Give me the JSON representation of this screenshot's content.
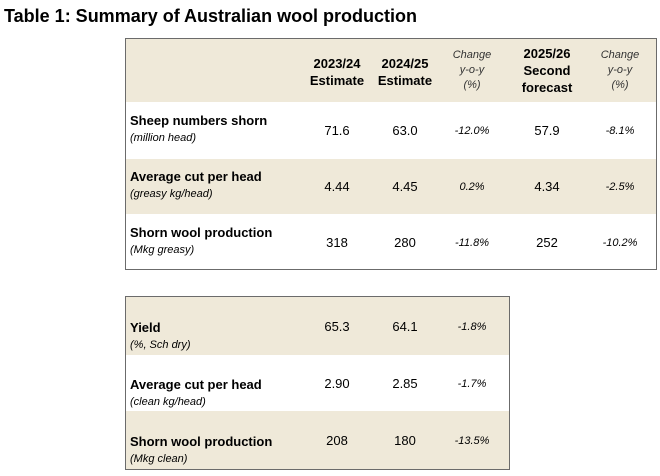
{
  "title": "Table 1: Summary of Australian wool production",
  "table1": {
    "headers": {
      "c1": [
        "2023/24",
        "Estimate"
      ],
      "c2": [
        "2024/25",
        "Estimate"
      ],
      "c3": [
        "Change",
        "y-o-y",
        "(%)"
      ],
      "c4": [
        "2025/26",
        "Second",
        "forecast"
      ],
      "c5": [
        "Change",
        "y-o-y",
        "(%)"
      ]
    },
    "rows": [
      {
        "label": "Sheep numbers shorn",
        "unit": "(million head)",
        "v1": "71.6",
        "v2": "63.0",
        "v3": "-12.0%",
        "v4": "57.9",
        "v5": "-8.1%"
      },
      {
        "label": "Average cut per head",
        "unit": "(greasy kg/head)",
        "v1": "4.44",
        "v2": "4.45",
        "v3": "0.2%",
        "v4": "4.34",
        "v5": "-2.5%"
      },
      {
        "label": "Shorn wool production",
        "unit": "(Mkg greasy)",
        "v1": "318",
        "v2": "280",
        "v3": "-11.8%",
        "v4": "252",
        "v5": "-10.2%"
      }
    ]
  },
  "table2": {
    "rows": [
      {
        "label": "Yield",
        "unit": "(%, Sch dry)",
        "v1": "65.3",
        "v2": "64.1",
        "v3": "-1.8%"
      },
      {
        "label": "Average cut per head",
        "unit": "(clean kg/head)",
        "v1": "2.90",
        "v2": "2.85",
        "v3": "-1.7%"
      },
      {
        "label": "Shorn wool production",
        "unit": "(Mkg clean)",
        "v1": "208",
        "v2": "180",
        "v3": "-13.5%"
      }
    ]
  }
}
